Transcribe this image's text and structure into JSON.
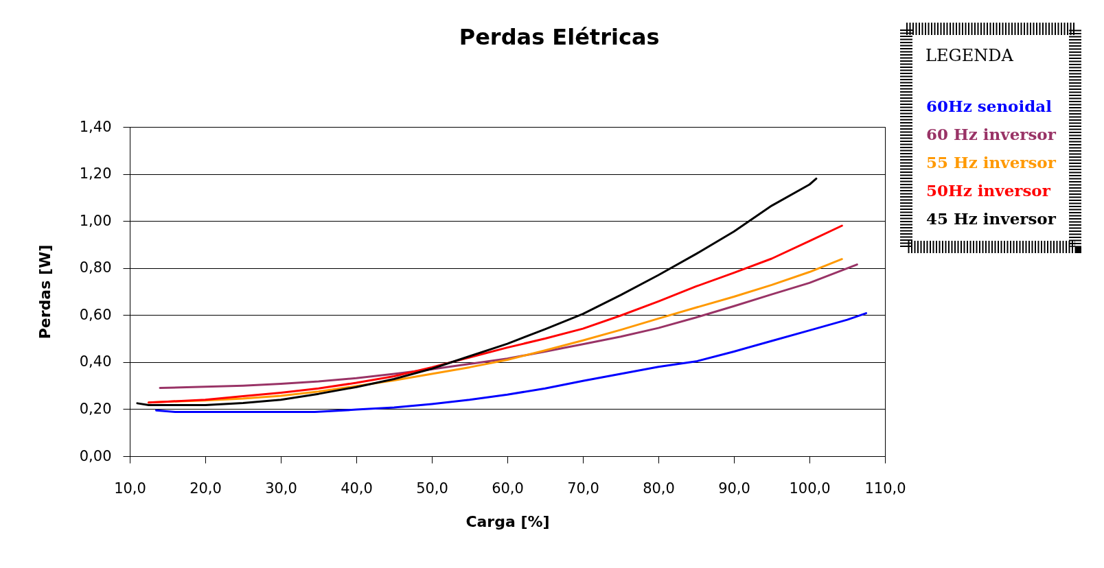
{
  "chart_data": {
    "type": "line",
    "title": "Perdas Elétricas",
    "xlabel": "Carga [%]",
    "ylabel": "Perdas [W]",
    "legend_title": "LEGENDA",
    "xlim": [
      10,
      110
    ],
    "xticks": [
      {
        "value": 10,
        "label": "10,0"
      },
      {
        "value": 20,
        "label": "20,0"
      },
      {
        "value": 30,
        "label": "30,0"
      },
      {
        "value": 40,
        "label": "40,0"
      },
      {
        "value": 50,
        "label": "50,0"
      },
      {
        "value": 60,
        "label": "60,0"
      },
      {
        "value": 70,
        "label": "70,0"
      },
      {
        "value": 80,
        "label": "80,0"
      },
      {
        "value": 90,
        "label": "90,0"
      },
      {
        "value": 100,
        "label": "100,0"
      },
      {
        "value": 110,
        "label": "110,0"
      }
    ],
    "ylim": [
      0,
      1.4
    ],
    "yticks": [
      {
        "value": 0,
        "label": "0,00"
      },
      {
        "value": 0.2,
        "label": "0,20"
      },
      {
        "value": 0.4,
        "label": "0,40"
      },
      {
        "value": 0.6,
        "label": "0,60"
      },
      {
        "value": 0.8,
        "label": "0,80"
      },
      {
        "value": 1,
        "label": "1,00"
      },
      {
        "value": 1.2,
        "label": "1,20"
      },
      {
        "value": 1.4,
        "label": "1,40"
      }
    ],
    "grid": "y",
    "legend": "right",
    "line_style": "solid",
    "series": [
      {
        "name": "60Hz senoidal",
        "color": "#0000ff",
        "x": [
          13.5,
          16,
          20,
          25,
          30,
          34.5,
          40,
          45,
          50,
          55,
          60,
          65,
          70,
          75,
          80,
          85,
          90,
          95,
          100,
          105,
          107.5
        ],
        "values": [
          0.195,
          0.188,
          0.188,
          0.188,
          0.188,
          0.188,
          0.198,
          0.207,
          0.222,
          0.24,
          0.262,
          0.288,
          0.32,
          0.35,
          0.38,
          0.403,
          0.445,
          0.49,
          0.535,
          0.58,
          0.608
        ]
      },
      {
        "name": "60 Hz inversor",
        "color": "#993366",
        "x": [
          14,
          20,
          25,
          30,
          35,
          40,
          45,
          50,
          55,
          60,
          65,
          70,
          75,
          80,
          85,
          90,
          95,
          100,
          106.3
        ],
        "values": [
          0.29,
          0.295,
          0.3,
          0.308,
          0.318,
          0.332,
          0.35,
          0.37,
          0.392,
          0.415,
          0.445,
          0.476,
          0.508,
          0.545,
          0.59,
          0.638,
          0.688,
          0.737,
          0.815
        ]
      },
      {
        "name": "55 Hz inversor",
        "color": "#ff9900",
        "x": [
          12.5,
          15,
          20,
          25,
          30,
          35,
          40,
          45,
          50,
          55,
          60,
          65,
          70,
          75,
          80,
          85,
          90,
          95,
          100,
          104.3
        ],
        "values": [
          0.228,
          0.232,
          0.237,
          0.245,
          0.257,
          0.275,
          0.298,
          0.322,
          0.35,
          0.378,
          0.41,
          0.45,
          0.492,
          0.537,
          0.585,
          0.632,
          0.678,
          0.728,
          0.783,
          0.838
        ]
      },
      {
        "name": "50Hz inversor",
        "color": "#ff0000",
        "x": [
          12.5,
          15,
          20,
          25,
          30,
          35,
          40,
          45,
          50,
          55,
          60,
          65,
          70,
          75,
          80,
          85,
          90,
          95,
          100,
          104.3
        ],
        "values": [
          0.228,
          0.232,
          0.24,
          0.255,
          0.27,
          0.288,
          0.312,
          0.34,
          0.378,
          0.42,
          0.462,
          0.5,
          0.542,
          0.598,
          0.658,
          0.722,
          0.78,
          0.84,
          0.915,
          0.98
        ]
      },
      {
        "name": "45 Hz inversor",
        "color": "#000000",
        "x": [
          11,
          12.5,
          20,
          25,
          30,
          35,
          40,
          45,
          50,
          55,
          60,
          65,
          70,
          75,
          80,
          85,
          90,
          95,
          100,
          100.9
        ],
        "values": [
          0.225,
          0.217,
          0.217,
          0.226,
          0.24,
          0.265,
          0.294,
          0.328,
          0.372,
          0.425,
          0.478,
          0.54,
          0.605,
          0.685,
          0.77,
          0.86,
          0.955,
          1.065,
          1.155,
          1.18
        ]
      }
    ]
  }
}
